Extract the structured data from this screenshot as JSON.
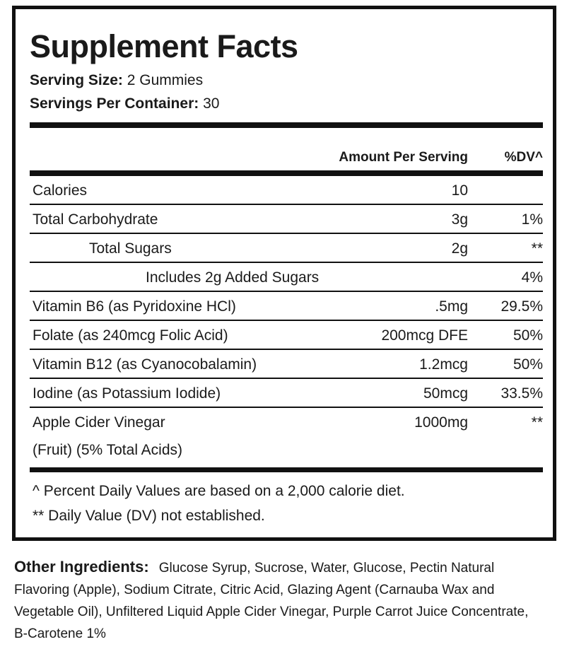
{
  "header": {
    "title": "Supplement Facts",
    "serving_size": {
      "label": "Serving Size:",
      "value": "2 Gummies"
    },
    "servings_per_container": {
      "label": "Servings Per Container:",
      "value": "30"
    }
  },
  "table": {
    "columns": [
      "Amount Per Serving",
      "%DV^"
    ],
    "rows": [
      {
        "name": "Calories",
        "amount": "10"
      },
      {
        "name": "Total Carbohydrate",
        "amount": "3g",
        "dv": "1%"
      },
      {
        "name": "Total Sugars",
        "amount": "2g",
        "dv": "**"
      },
      {
        "name": "Includes 2g Added Sugars",
        "dv": "4%"
      },
      {
        "name": "Vitamin B6 (as Pyridoxine HCl)",
        "amount": ".5mg",
        "dv": "29.5%"
      },
      {
        "name": "Folate (as 240mcg Folic Acid)",
        "amount": "200mcg DFE",
        "dv": "50%"
      },
      {
        "name": "Vitamin B12 (as Cyanocobalamin)",
        "amount": "1.2mcg",
        "dv": "50%"
      },
      {
        "name": "Iodine (as Potassium Iodide)",
        "amount": "50mcg",
        "dv": "33.5%"
      },
      {
        "name": [
          "Apple Cider Vinegar",
          "(Fruit) (5% Total Acids)"
        ],
        "amount": "1000mg",
        "dv": "**"
      }
    ]
  },
  "footnotes": [
    "^ Percent Daily Values are based on a 2,000 calorie diet.",
    "** Daily Value (DV) not established."
  ],
  "other_ingredients": {
    "label": "Other Ingredients:",
    "text": "Glucose Syrup, Sucrose, Water, Glucose, Pectin Natural Flavoring (Apple), Sodium Citrate, Citric Acid, Glazing Agent (Carnauba Wax and Vegetable Oil), Unfiltered Liquid Apple Cider Vinegar, Purple Carrot Juice Concentrate, B-Carotene 1%"
  }
}
